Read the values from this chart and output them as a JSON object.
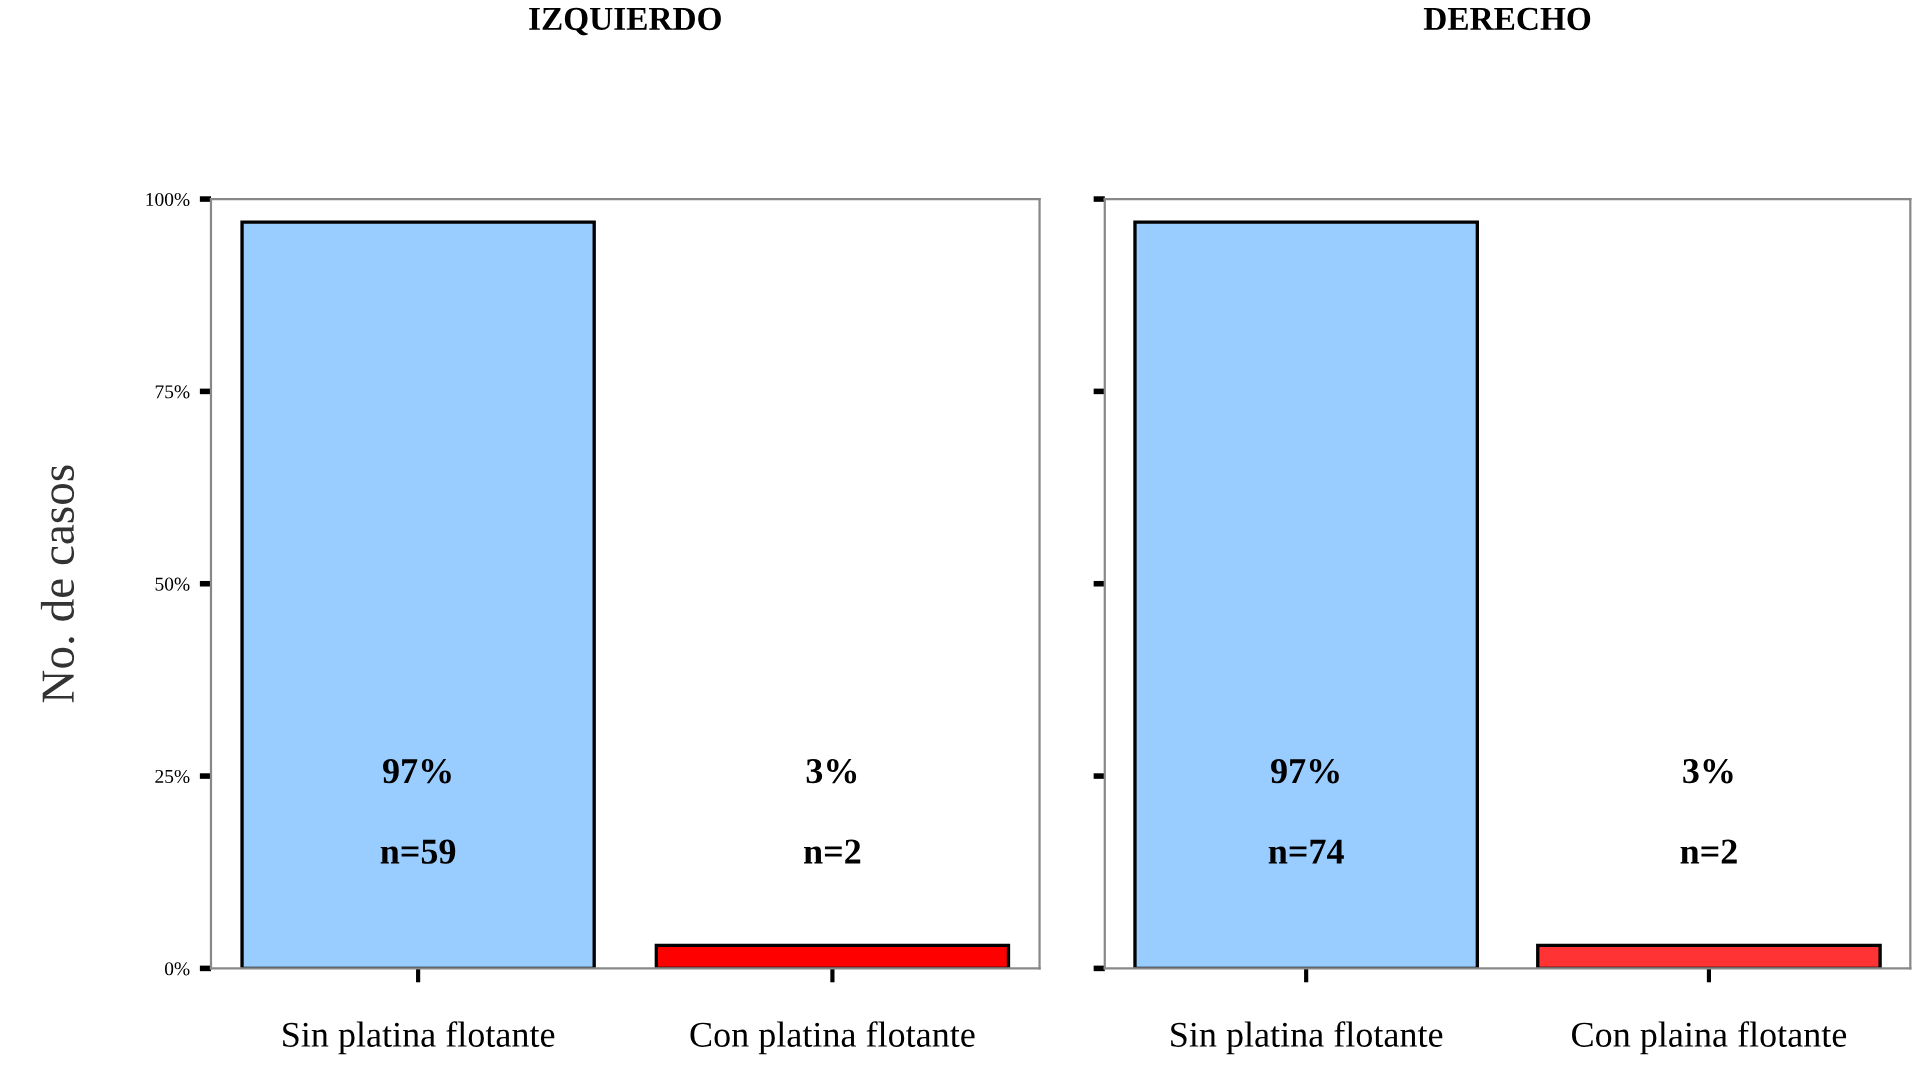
{
  "chart_data": [
    {
      "type": "bar",
      "title": "IZQUIERDO",
      "ylabel": "No. de casos",
      "categories": [
        "Sin platina flotante",
        "Con platina flotante"
      ],
      "values": [
        97,
        3
      ],
      "colors": [
        "#99ccff",
        "#ff0000"
      ],
      "ylim": [
        0,
        100
      ],
      "yticks": [
        {
          "value": 0,
          "label": "0%"
        },
        {
          "value": 25,
          "label": "25%"
        },
        {
          "value": 50,
          "label": "50%"
        },
        {
          "value": 75,
          "label": "75%"
        },
        {
          "value": 100,
          "label": "100%"
        }
      ],
      "grid": false,
      "value_labels": [
        "97%\n\nn=59",
        "3%\n\nn=2"
      ]
    },
    {
      "type": "bar",
      "title": "DERECHO",
      "categories": [
        "Sin platina flotante",
        "Con plaina flotante"
      ],
      "values": [
        97,
        3
      ],
      "colors": [
        "#99ccff",
        "#ff3333"
      ],
      "ylim": [
        0,
        100
      ],
      "yticks": [
        {
          "value": 0,
          "label": null
        },
        {
          "value": 25,
          "label": null
        },
        {
          "value": 50,
          "label": null
        },
        {
          "value": 75,
          "label": null
        },
        {
          "value": 100,
          "label": null
        }
      ],
      "grid": false,
      "tick_labels": "x",
      "value_labels": [
        "97%\n\nn=74",
        "3%\n\nn=2"
      ]
    }
  ]
}
